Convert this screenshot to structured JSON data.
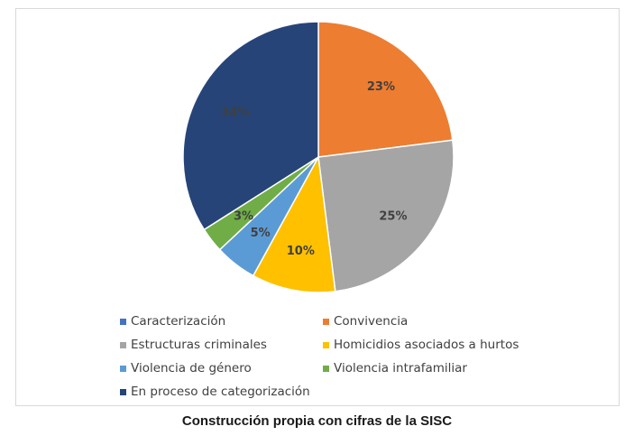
{
  "caption": "Construcción propia con cifras de la SISC",
  "chart_data": {
    "type": "pie",
    "slices": [
      {
        "label": "Caracterización",
        "value": 0,
        "display": "",
        "color": "#4472c4"
      },
      {
        "label": "Convivencia",
        "value": 23,
        "display": "23%",
        "color": "#ed7d31"
      },
      {
        "label": "Estructuras criminales",
        "value": 25,
        "display": "25%",
        "color": "#a5a5a5"
      },
      {
        "label": "Homicidios asociados a hurtos",
        "value": 10,
        "display": "10%",
        "color": "#ffc000"
      },
      {
        "label": "Violencia de género",
        "value": 5,
        "display": "5%",
        "color": "#5b9bd5"
      },
      {
        "label": "Violencia intrafamiliar",
        "value": 3,
        "display": "3%",
        "color": "#70ad47"
      },
      {
        "label": "En proceso de categorización",
        "value": 34,
        "display": "34%",
        "color": "#264478"
      }
    ],
    "legend_position": "bottom"
  }
}
